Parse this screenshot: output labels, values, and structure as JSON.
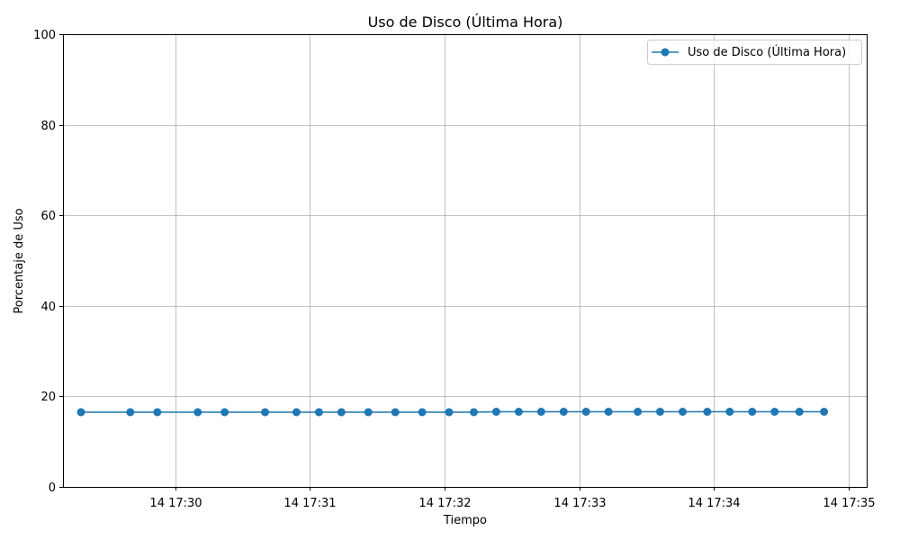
{
  "chart_data": {
    "type": "line",
    "title": "Uso de Disco (Última Hora)",
    "xlabel": "Tiempo",
    "ylabel": "Porcentaje de Uso",
    "xlim": [
      "14 17:29:10",
      "14 17:35:08"
    ],
    "ylim": [
      0,
      100
    ],
    "x_ticks": [
      "14 17:30",
      "14 17:31",
      "14 17:32",
      "14 17:33",
      "14 17:34",
      "14 17:35"
    ],
    "y_ticks": [
      0,
      20,
      40,
      60,
      80,
      100
    ],
    "grid": true,
    "legend_position": "top-right",
    "series": [
      {
        "name": "Uso de Disco (Última Hora)",
        "color": "#1f77b4",
        "marker": "circle",
        "x": [
          "14 17:29:18",
          "14 17:29:40",
          "14 17:29:52",
          "14 17:30:10",
          "14 17:30:22",
          "14 17:30:40",
          "14 17:30:54",
          "14 17:31:04",
          "14 17:31:14",
          "14 17:31:26",
          "14 17:31:38",
          "14 17:31:50",
          "14 17:32:02",
          "14 17:32:13",
          "14 17:32:23",
          "14 17:32:33",
          "14 17:32:43",
          "14 17:32:53",
          "14 17:33:03",
          "14 17:33:13",
          "14 17:33:26",
          "14 17:33:36",
          "14 17:33:46",
          "14 17:33:57",
          "14 17:34:07",
          "14 17:34:17",
          "14 17:34:27",
          "14 17:34:38",
          "14 17:34:49"
        ],
        "values": [
          16.5,
          16.5,
          16.5,
          16.5,
          16.5,
          16.5,
          16.5,
          16.5,
          16.5,
          16.5,
          16.5,
          16.5,
          16.5,
          16.5,
          16.6,
          16.6,
          16.6,
          16.6,
          16.6,
          16.6,
          16.6,
          16.6,
          16.6,
          16.6,
          16.6,
          16.6,
          16.6,
          16.6,
          16.6
        ]
      }
    ]
  }
}
